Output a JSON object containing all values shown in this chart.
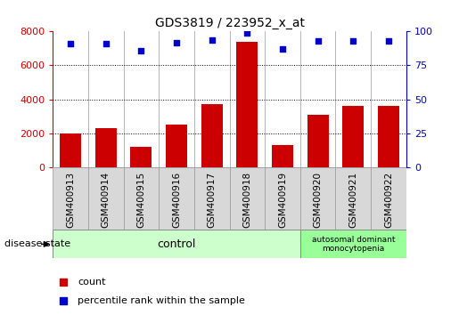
{
  "title": "GDS3819 / 223952_x_at",
  "samples": [
    "GSM400913",
    "GSM400914",
    "GSM400915",
    "GSM400916",
    "GSM400917",
    "GSM400918",
    "GSM400919",
    "GSM400920",
    "GSM400921",
    "GSM400922"
  ],
  "counts": [
    2000,
    2300,
    1200,
    2500,
    3700,
    7400,
    1300,
    3100,
    3600,
    3600
  ],
  "percentiles": [
    91,
    91,
    86,
    92,
    94,
    99,
    87,
    93,
    93,
    93
  ],
  "bar_color": "#cc0000",
  "dot_color": "#0000cc",
  "left_axis_color": "#cc0000",
  "right_axis_color": "#0000cc",
  "ylim_left": [
    0,
    8000
  ],
  "ylim_right": [
    0,
    100
  ],
  "left_ticks": [
    0,
    2000,
    4000,
    6000,
    8000
  ],
  "right_ticks": [
    0,
    25,
    50,
    75,
    100
  ],
  "control_count": 7,
  "adm_count": 3,
  "control_label": "control",
  "adm_label": "autosomal dominant\nmonocytopenia",
  "control_color": "#ccffcc",
  "adm_color": "#99ff99",
  "group_border_color": "#888888",
  "disease_state_label": "disease state",
  "legend_count_label": "count",
  "legend_pct_label": "percentile rank within the sample",
  "xtick_bg_color": "#d8d8d8",
  "xtick_border_color": "#999999",
  "vline_color": "#999999",
  "grid_color": "#000000",
  "figsize": [
    5.15,
    3.54
  ],
  "dpi": 100
}
